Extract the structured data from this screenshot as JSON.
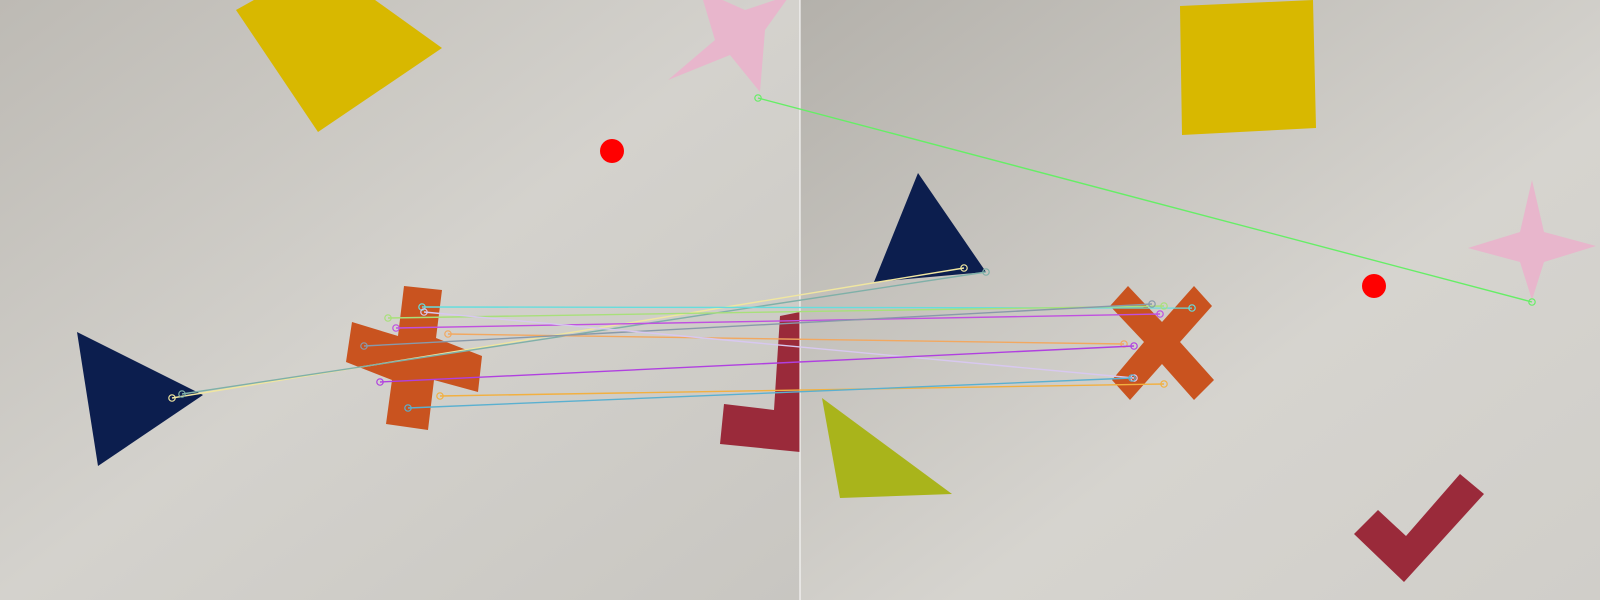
{
  "colors": {
    "paper_left": "#cfcdc8",
    "paper_right": "#d3d1cc",
    "yellow": "#d8b800",
    "pink": "#e8b6cc",
    "red_dot": "#ff0000",
    "navy": "#0c1e4e",
    "orange": "#c9531f",
    "maroon": "#9a2a3a",
    "olive": "#a9b41b"
  },
  "panels": [
    {
      "name": "left-photo",
      "shapes": [
        "yellow-square",
        "pink-star",
        "red-dot",
        "navy-triangle",
        "orange-cross",
        "maroon-checkmark"
      ]
    },
    {
      "name": "right-photo",
      "shapes": [
        "yellow-square",
        "navy-triangle",
        "pink-star",
        "red-dot",
        "orange-cross",
        "olive-triangle",
        "maroon-checkmark"
      ]
    }
  ],
  "matches": [
    {
      "color": "#66ee66"
    },
    {
      "color": "#f0e6a0"
    },
    {
      "color": "#7fb0a8"
    },
    {
      "color": "#66dddd"
    },
    {
      "color": "#a8e07a"
    },
    {
      "color": "#c050e0"
    },
    {
      "color": "#f2a860"
    },
    {
      "color": "#8899aa"
    },
    {
      "color": "#d8c8f0"
    },
    {
      "color": "#b040e0"
    },
    {
      "color": "#f2b040"
    },
    {
      "color": "#5ab0d0"
    }
  ]
}
